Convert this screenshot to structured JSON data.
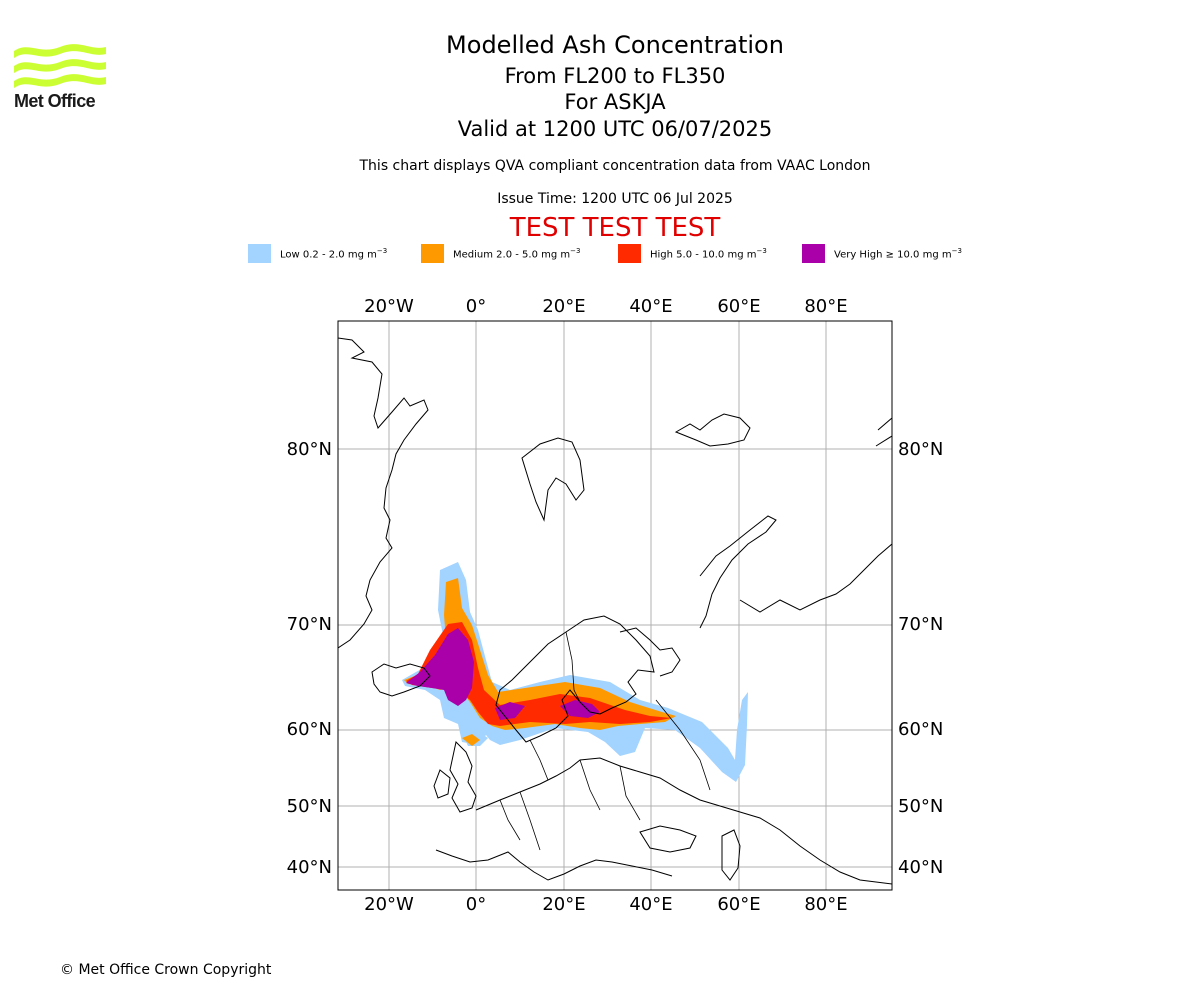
{
  "logo": {
    "icon": "met-office-wave-logo-icon",
    "text": "Met Office",
    "color": "#ccff33"
  },
  "header": {
    "title": "Modelled Ash Concentration",
    "level_range": "From FL200 to FL350",
    "volcano": "For ASKJA",
    "valid_time": "Valid at 1200 UTC 06/07/2025",
    "description": "This chart displays QVA compliant concentration data from VAAC London",
    "issue_time": "Issue Time: 1200 UTC 06 Jul 2025",
    "test_banner": "TEST TEST TEST",
    "test_color": "#e00000"
  },
  "legend": [
    {
      "label": "Low 0.2 - 2.0 mg m",
      "exp": "−3",
      "color": "#a3d3ff"
    },
    {
      "label": "Medium 2.0 - 5.0 mg m",
      "exp": "−3",
      "color": "#ff9900"
    },
    {
      "label": "High 5.0 - 10.0 mg m",
      "exp": "−3",
      "color": "#ff2a00"
    },
    {
      "label": "Very High ≥ 10.0 mg m",
      "exp": "−3",
      "color": "#aa00aa"
    }
  ],
  "map": {
    "top_lon_labels": [
      "20°W",
      "0°",
      "20°E",
      "40°E",
      "60°E",
      "80°E"
    ],
    "bottom_lon_labels": [
      "20°W",
      "0°",
      "20°E",
      "40°E",
      "60°E",
      "80°E"
    ],
    "left_lat_labels": [
      "80°N",
      "70°N",
      "60°N",
      "50°N",
      "40°N"
    ],
    "right_lat_labels": [
      "80°N",
      "70°N",
      "60°N",
      "50°N",
      "40°N"
    ],
    "gridlines": true,
    "gridline_color": "#b0b0b0"
  },
  "footer": {
    "copyright": "© Met Office Crown Copyright"
  }
}
